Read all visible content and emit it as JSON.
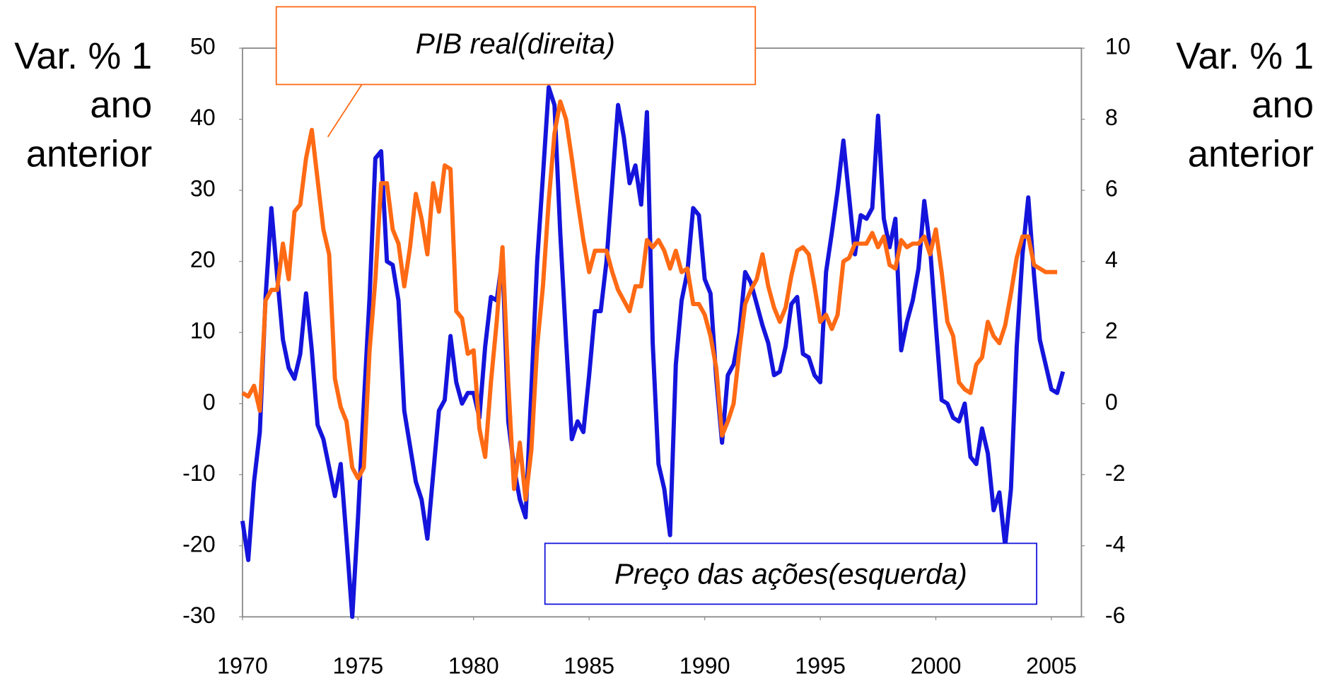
{
  "chart_data": {
    "type": "line",
    "y_label": "Var. % 1 ano anterior",
    "y2_label": "Var. % 1 ano anterior",
    "xlim": [
      1970,
      2006.3
    ],
    "xticks": [
      1970,
      1975,
      1980,
      1985,
      1990,
      1995,
      2000,
      2005
    ],
    "ylim": [
      -30,
      50
    ],
    "yticks": [
      -30,
      -20,
      -10,
      0,
      10,
      20,
      30,
      40,
      50
    ],
    "y2lim": [
      -6,
      10
    ],
    "y2ticks": [
      -6,
      -4,
      -2,
      0,
      2,
      4,
      6,
      8,
      10
    ],
    "x": [
      1970,
      1970.25,
      1970.5,
      1970.75,
      1971,
      1971.25,
      1971.5,
      1971.75,
      1972,
      1972.25,
      1972.5,
      1972.75,
      1973,
      1973.25,
      1973.5,
      1973.75,
      1974,
      1974.25,
      1974.5,
      1974.75,
      1975,
      1975.25,
      1975.5,
      1975.75,
      1976,
      1976.25,
      1976.5,
      1976.75,
      1977,
      1977.25,
      1977.5,
      1977.75,
      1978,
      1978.25,
      1978.5,
      1978.75,
      1979,
      1979.25,
      1979.5,
      1979.75,
      1980,
      1980.25,
      1980.5,
      1980.75,
      1981,
      1981.25,
      1981.5,
      1981.75,
      1982,
      1982.25,
      1982.5,
      1982.75,
      1983,
      1983.25,
      1983.5,
      1983.75,
      1984,
      1984.25,
      1984.5,
      1984.75,
      1985,
      1985.25,
      1985.5,
      1985.75,
      1986,
      1986.25,
      1986.5,
      1986.75,
      1987,
      1987.25,
      1987.5,
      1987.75,
      1988,
      1988.25,
      1988.5,
      1988.75,
      1989,
      1989.25,
      1989.5,
      1989.75,
      1990,
      1990.25,
      1990.5,
      1990.75,
      1991,
      1991.25,
      1991.5,
      1991.75,
      1992,
      1992.25,
      1992.5,
      1992.75,
      1993,
      1993.25,
      1993.5,
      1993.75,
      1994,
      1994.25,
      1994.5,
      1994.75,
      1995,
      1995.25,
      1995.5,
      1995.75,
      1996,
      1996.25,
      1996.5,
      1996.75,
      1997,
      1997.25,
      1997.5,
      1997.75,
      1998,
      1998.25,
      1998.5,
      1998.75,
      1999,
      1999.25,
      1999.5,
      1999.75,
      2000,
      2000.25,
      2000.5,
      2000.75,
      2001,
      2001.25,
      2001.5,
      2001.75,
      2002,
      2002.25,
      2002.5,
      2002.75,
      2003,
      2003.25,
      2003.5,
      2003.75,
      2004,
      2004.25,
      2004.5,
      2004.75,
      2005,
      2005.25,
      2005.5
    ],
    "series": [
      {
        "name": "Preço das ações(esquerda)",
        "color": "#1414dc",
        "axis": "y",
        "values": [
          -16.5,
          -22,
          -11,
          -4,
          15,
          27.5,
          18,
          9,
          5,
          3.5,
          7,
          15.5,
          7.5,
          -3,
          -5,
          -9,
          -13,
          -8.5,
          -19,
          -30,
          -16,
          0,
          15,
          34.5,
          35.5,
          20,
          19.5,
          14.5,
          -1,
          -6,
          -11,
          -13.5,
          -19,
          -10,
          -1,
          0.5,
          9.5,
          3,
          0,
          1.5,
          1.5,
          -2,
          8,
          15,
          14.5,
          20.5,
          -2.5,
          -9,
          -13.5,
          -16,
          2,
          20,
          32,
          44.5,
          42,
          24,
          9,
          -5,
          -2.5,
          -4,
          4,
          13,
          13,
          20,
          31,
          42,
          37.5,
          31,
          33.5,
          28,
          41,
          8.5,
          -8.5,
          -12,
          -18.5,
          5.5,
          14.5,
          18.5,
          27.5,
          26.5,
          17.5,
          15.5,
          3.5,
          -5.5,
          4,
          5.5,
          10,
          18.5,
          17,
          14,
          11,
          8.5,
          4,
          4.5,
          8,
          14,
          15,
          7,
          6.5,
          4,
          3,
          18.5,
          24,
          30,
          37,
          29,
          21,
          26.5,
          26,
          27.5,
          40.5,
          26,
          22,
          26,
          7.5,
          11.5,
          14.5,
          19,
          28.5,
          22,
          11,
          0.5,
          0,
          -2,
          -2.5,
          0,
          -7.5,
          -8.5,
          -3.5,
          -7,
          -15,
          -12.5,
          -20,
          -12,
          8,
          21,
          29,
          18,
          9,
          5.5,
          2,
          1.5,
          4.5
        ]
      },
      {
        "name": "PIB real(direita)",
        "color": "#ff6a14",
        "axis": "y2",
        "values": [
          0.3,
          0.2,
          0.5,
          -0.2,
          2.9,
          3.2,
          3.2,
          4.5,
          3.5,
          5.4,
          5.6,
          6.9,
          7.7,
          6.3,
          4.9,
          4.2,
          0.7,
          -0.1,
          -0.5,
          -1.8,
          -2.1,
          -1.8,
          1.5,
          3.5,
          6.2,
          6.2,
          4.9,
          4.5,
          3.3,
          4.4,
          5.9,
          5.2,
          4.2,
          6.2,
          5.4,
          6.7,
          6.6,
          2.6,
          2.4,
          1.4,
          1.5,
          -0.7,
          -1.5,
          0.6,
          2.3,
          4.4,
          0.6,
          -2.4,
          -1.1,
          -2.7,
          -1.3,
          1.6,
          3.3,
          5.7,
          7.6,
          8.5,
          8,
          6.9,
          5.7,
          4.6,
          3.7,
          4.3,
          4.3,
          4.3,
          3.7,
          3.2,
          2.9,
          2.6,
          3.3,
          3.3,
          4.6,
          4.4,
          4.6,
          4.3,
          3.8,
          4.3,
          3.7,
          3.8,
          2.8,
          2.8,
          2.5,
          1.9,
          1,
          -0.9,
          -0.5,
          0,
          1.5,
          2.8,
          3.2,
          3.5,
          4.2,
          3.3,
          2.7,
          2.3,
          2.7,
          3.6,
          4.3,
          4.4,
          4.2,
          3.3,
          2.3,
          2.5,
          2.1,
          2.5,
          4,
          4.1,
          4.5,
          4.5,
          4.5,
          4.8,
          4.4,
          4.7,
          3.9,
          3.8,
          4.6,
          4.4,
          4.5,
          4.5,
          4.7,
          4.2,
          4.9,
          3.7,
          2.3,
          1.9,
          0.6,
          0.4,
          0.3,
          1.1,
          1.3,
          2.3,
          1.9,
          1.7,
          2.2,
          3.1,
          4.1,
          4.7,
          4.7,
          3.9,
          3.8,
          3.7,
          3.7,
          3.7,
          null
        ]
      }
    ]
  }
}
